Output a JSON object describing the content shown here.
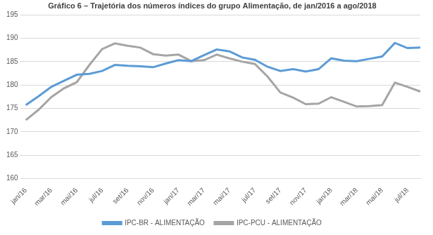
{
  "chart_data": {
    "type": "line",
    "title": "Gráfico 6 – Trajetória dos números índices do grupo Alimentação, de jan/2016 a ago/2018",
    "categories": [
      "jan/16",
      null,
      "mar/16",
      null,
      "mai/16",
      null,
      "jul/16",
      null,
      "set/16",
      null,
      "nov/16",
      null,
      "jan/17",
      null,
      "mar/17",
      null,
      "mai/17",
      null,
      "jul/17",
      null,
      "set/17",
      null,
      "nov/17",
      null,
      "jan/18",
      null,
      "mar/18",
      null,
      "mai/18",
      null,
      "jul/18",
      null
    ],
    "series": [
      {
        "name": "IPC-BR - ALIMENTAÇÃO",
        "color": "#5b9bd5",
        "values": [
          175.7,
          177.6,
          179.6,
          180.9,
          182.2,
          182.4,
          183.0,
          184.3,
          184.1,
          184.0,
          183.8,
          184.6,
          185.3,
          185.1,
          186.4,
          187.6,
          187.2,
          185.9,
          185.4,
          183.9,
          183.0,
          183.4,
          182.9,
          183.4,
          185.7,
          185.2,
          185.1,
          185.6,
          186.1,
          189.0,
          187.9,
          188.0
        ]
      },
      {
        "name": "IPC-PCU - ALIMENTAÇÃO",
        "color": "#a5a5a5",
        "values": [
          172.5,
          174.7,
          177.4,
          179.3,
          180.6,
          184.3,
          187.7,
          188.9,
          188.4,
          188.0,
          186.6,
          186.3,
          186.5,
          185.1,
          185.3,
          186.5,
          185.7,
          185.0,
          184.5,
          181.8,
          178.4,
          177.3,
          175.9,
          176.0,
          177.4,
          176.4,
          175.4,
          175.5,
          175.7,
          180.5,
          179.6,
          178.6
        ]
      }
    ],
    "ylim": [
      160,
      195
    ],
    "yticks": [
      160,
      165,
      170,
      175,
      180,
      185,
      190,
      195
    ],
    "grid": true,
    "legend": "bottom"
  }
}
